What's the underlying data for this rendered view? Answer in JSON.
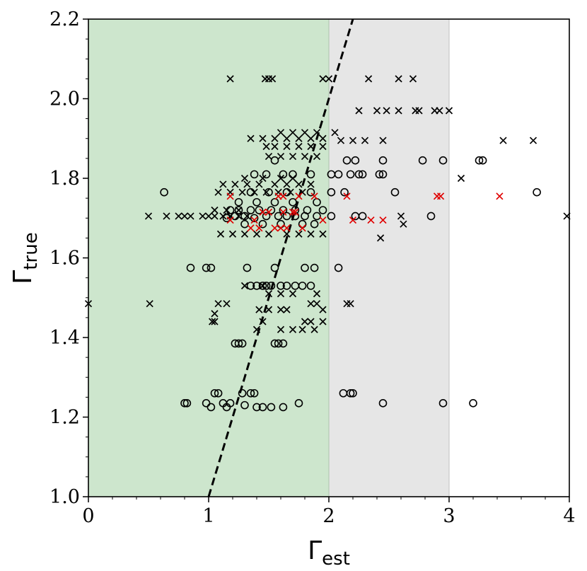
{
  "chart_data": {
    "type": "scatter",
    "xlabel": {
      "symbol": "Γ",
      "subscript": "est"
    },
    "ylabel": {
      "symbol": "Γ",
      "subscript": "true"
    },
    "xlim": [
      0,
      4
    ],
    "ylim": [
      1.0,
      2.2
    ],
    "x_ticks": [
      "0",
      "1",
      "2",
      "3",
      "4"
    ],
    "y_ticks": [
      "1.0",
      "1.2",
      "1.4",
      "1.6",
      "1.8",
      "2.0",
      "2.2"
    ],
    "grid": false,
    "regions": [
      {
        "x_from": 0,
        "x_to": 2,
        "color": "#cde6cd"
      },
      {
        "x_from": 2,
        "x_to": 3,
        "color": "#e6e6e6"
      }
    ],
    "reference_line": {
      "style": "dashed",
      "color": "#000000",
      "points": [
        [
          1.0,
          1.0
        ],
        [
          2.2,
          2.2
        ]
      ]
    },
    "series": [
      {
        "marker": "circle",
        "color": "#000000",
        "points": [
          [
            0.63,
            1.765
          ],
          [
            0.8,
            1.235
          ],
          [
            0.82,
            1.235
          ],
          [
            0.85,
            1.575
          ],
          [
            0.98,
            1.235
          ],
          [
            1.02,
            1.225
          ],
          [
            1.05,
            1.26
          ],
          [
            1.08,
            1.26
          ],
          [
            1.12,
            1.235
          ],
          [
            1.15,
            1.225
          ],
          [
            1.18,
            1.235
          ],
          [
            1.22,
            1.385
          ],
          [
            1.25,
            1.385
          ],
          [
            1.28,
            1.385
          ],
          [
            1.28,
            1.26
          ],
          [
            1.3,
            1.23
          ],
          [
            1.35,
            1.26
          ],
          [
            1.38,
            1.26
          ],
          [
            1.4,
            1.225
          ],
          [
            1.45,
            1.225
          ],
          [
            1.52,
            1.225
          ],
          [
            1.55,
            1.385
          ],
          [
            1.58,
            1.385
          ],
          [
            1.62,
            1.385
          ],
          [
            1.62,
            1.225
          ],
          [
            1.75,
            1.235
          ],
          [
            0.98,
            1.575
          ],
          [
            1.02,
            1.575
          ],
          [
            1.32,
            1.575
          ],
          [
            1.55,
            1.575
          ],
          [
            1.8,
            1.575
          ],
          [
            1.88,
            1.575
          ],
          [
            1.35,
            1.53
          ],
          [
            1.4,
            1.53
          ],
          [
            1.45,
            1.53
          ],
          [
            1.48,
            1.53
          ],
          [
            1.52,
            1.53
          ],
          [
            1.6,
            1.53
          ],
          [
            1.65,
            1.53
          ],
          [
            1.72,
            1.53
          ],
          [
            1.78,
            1.53
          ],
          [
            1.85,
            1.53
          ],
          [
            1.15,
            1.7
          ],
          [
            1.22,
            1.705
          ],
          [
            1.3,
            1.705
          ],
          [
            1.38,
            1.7
          ],
          [
            1.48,
            1.705
          ],
          [
            1.58,
            1.705
          ],
          [
            1.65,
            1.705
          ],
          [
            1.72,
            1.705
          ],
          [
            1.8,
            1.705
          ],
          [
            1.9,
            1.705
          ],
          [
            1.18,
            1.72
          ],
          [
            1.25,
            1.72
          ],
          [
            1.35,
            1.72
          ],
          [
            1.42,
            1.72
          ],
          [
            1.52,
            1.72
          ],
          [
            1.62,
            1.72
          ],
          [
            1.72,
            1.72
          ],
          [
            1.82,
            1.72
          ],
          [
            1.95,
            1.72
          ],
          [
            1.25,
            1.74
          ],
          [
            1.4,
            1.74
          ],
          [
            1.55,
            1.74
          ],
          [
            1.7,
            1.74
          ],
          [
            1.9,
            1.74
          ],
          [
            1.3,
            1.685
          ],
          [
            1.45,
            1.685
          ],
          [
            1.6,
            1.685
          ],
          [
            1.78,
            1.685
          ],
          [
            1.88,
            1.685
          ],
          [
            1.35,
            1.765
          ],
          [
            1.5,
            1.765
          ],
          [
            1.65,
            1.765
          ],
          [
            1.85,
            1.765
          ],
          [
            1.38,
            1.81
          ],
          [
            1.48,
            1.81
          ],
          [
            1.55,
            1.845
          ],
          [
            1.62,
            1.81
          ],
          [
            1.7,
            1.81
          ],
          [
            1.85,
            1.81
          ],
          [
            2.02,
            1.81
          ],
          [
            2.08,
            1.81
          ],
          [
            2.18,
            1.81
          ],
          [
            2.25,
            1.81
          ],
          [
            2.28,
            1.81
          ],
          [
            2.42,
            1.81
          ],
          [
            2.45,
            1.81
          ],
          [
            2.15,
            1.845
          ],
          [
            2.22,
            1.845
          ],
          [
            2.45,
            1.845
          ],
          [
            2.55,
            1.765
          ],
          [
            2.78,
            1.845
          ],
          [
            2.95,
            1.845
          ],
          [
            3.25,
            1.845
          ],
          [
            3.28,
            1.845
          ],
          [
            3.73,
            1.765
          ],
          [
            2.02,
            1.765
          ],
          [
            2.13,
            1.765
          ],
          [
            2.02,
            1.705
          ],
          [
            2.22,
            1.705
          ],
          [
            2.28,
            1.705
          ],
          [
            2.85,
            1.705
          ],
          [
            2.08,
            1.575
          ],
          [
            2.12,
            1.26
          ],
          [
            2.18,
            1.26
          ],
          [
            2.2,
            1.26
          ],
          [
            2.45,
            1.235
          ],
          [
            2.95,
            1.235
          ],
          [
            3.2,
            1.235
          ]
        ]
      },
      {
        "marker": "x",
        "color": "#000000",
        "points": [
          [
            0.0,
            1.485
          ],
          [
            0.51,
            1.485
          ],
          [
            0.5,
            1.705
          ],
          [
            0.65,
            1.705
          ],
          [
            0.75,
            1.705
          ],
          [
            0.8,
            1.705
          ],
          [
            0.85,
            1.705
          ],
          [
            0.95,
            1.705
          ],
          [
            1.0,
            1.705
          ],
          [
            1.05,
            1.705
          ],
          [
            1.12,
            1.705
          ],
          [
            1.18,
            1.705
          ],
          [
            1.25,
            1.705
          ],
          [
            1.32,
            1.705
          ],
          [
            1.05,
            1.72
          ],
          [
            1.15,
            1.72
          ],
          [
            1.25,
            1.72
          ],
          [
            1.1,
            1.66
          ],
          [
            1.2,
            1.66
          ],
          [
            1.3,
            1.66
          ],
          [
            1.4,
            1.66
          ],
          [
            1.5,
            1.66
          ],
          [
            1.65,
            1.66
          ],
          [
            1.75,
            1.66
          ],
          [
            1.85,
            1.66
          ],
          [
            1.95,
            1.66
          ],
          [
            1.08,
            1.765
          ],
          [
            1.18,
            1.765
          ],
          [
            1.28,
            1.765
          ],
          [
            1.38,
            1.765
          ],
          [
            1.48,
            1.765
          ],
          [
            1.58,
            1.765
          ],
          [
            1.68,
            1.765
          ],
          [
            1.78,
            1.765
          ],
          [
            1.12,
            1.785
          ],
          [
            1.22,
            1.785
          ],
          [
            1.32,
            1.785
          ],
          [
            1.42,
            1.785
          ],
          [
            1.55,
            1.785
          ],
          [
            1.65,
            1.785
          ],
          [
            1.75,
            1.785
          ],
          [
            1.85,
            1.785
          ],
          [
            1.3,
            1.8
          ],
          [
            1.45,
            1.8
          ],
          [
            1.6,
            1.8
          ],
          [
            1.7,
            1.8
          ],
          [
            1.5,
            1.855
          ],
          [
            1.6,
            1.855
          ],
          [
            1.7,
            1.855
          ],
          [
            1.8,
            1.855
          ],
          [
            1.9,
            1.855
          ],
          [
            1.48,
            1.88
          ],
          [
            1.55,
            1.88
          ],
          [
            1.65,
            1.88
          ],
          [
            1.75,
            1.88
          ],
          [
            1.85,
            1.88
          ],
          [
            1.95,
            1.88
          ],
          [
            1.35,
            1.9
          ],
          [
            1.45,
            1.9
          ],
          [
            1.55,
            1.9
          ],
          [
            1.65,
            1.9
          ],
          [
            1.75,
            1.9
          ],
          [
            1.85,
            1.9
          ],
          [
            1.95,
            1.9
          ],
          [
            1.6,
            1.915
          ],
          [
            1.7,
            1.915
          ],
          [
            1.8,
            1.915
          ],
          [
            1.9,
            1.915
          ],
          [
            2.05,
            1.915
          ],
          [
            2.1,
            1.895
          ],
          [
            2.2,
            1.895
          ],
          [
            2.3,
            1.895
          ],
          [
            2.45,
            1.895
          ],
          [
            2.25,
            1.97
          ],
          [
            2.4,
            1.97
          ],
          [
            2.48,
            1.97
          ],
          [
            2.58,
            1.97
          ],
          [
            2.72,
            1.97
          ],
          [
            2.75,
            1.97
          ],
          [
            2.88,
            1.97
          ],
          [
            2.92,
            1.97
          ],
          [
            3.0,
            1.97
          ],
          [
            3.1,
            1.8
          ],
          [
            3.45,
            1.895
          ],
          [
            3.7,
            1.895
          ],
          [
            3.98,
            1.705
          ],
          [
            2.6,
            1.705
          ],
          [
            2.62,
            1.685
          ],
          [
            2.43,
            1.65
          ],
          [
            1.18,
            2.05
          ],
          [
            1.47,
            2.05
          ],
          [
            1.5,
            2.05
          ],
          [
            1.53,
            2.05
          ],
          [
            1.95,
            2.05
          ],
          [
            2.0,
            2.05
          ],
          [
            2.33,
            2.05
          ],
          [
            2.58,
            2.05
          ],
          [
            2.7,
            2.05
          ],
          [
            1.03,
            1.44
          ],
          [
            1.05,
            1.44
          ],
          [
            1.08,
            1.485
          ],
          [
            1.15,
            1.485
          ],
          [
            1.05,
            1.46
          ],
          [
            1.42,
            1.47
          ],
          [
            1.5,
            1.47
          ],
          [
            1.6,
            1.47
          ],
          [
            1.65,
            1.47
          ],
          [
            1.45,
            1.44
          ],
          [
            1.6,
            1.42
          ],
          [
            1.7,
            1.42
          ],
          [
            1.78,
            1.42
          ],
          [
            1.85,
            1.44
          ],
          [
            1.88,
            1.42
          ],
          [
            1.95,
            1.44
          ],
          [
            1.95,
            1.47
          ],
          [
            1.85,
            1.485
          ],
          [
            1.9,
            1.485
          ],
          [
            1.5,
            1.51
          ],
          [
            1.6,
            1.51
          ],
          [
            1.7,
            1.51
          ],
          [
            1.9,
            1.51
          ],
          [
            1.3,
            1.53
          ],
          [
            1.45,
            1.53
          ],
          [
            2.15,
            1.485
          ],
          [
            2.18,
            1.485
          ],
          [
            1.4,
            1.42
          ],
          [
            1.8,
            1.44
          ]
        ]
      },
      {
        "marker": "x",
        "color": "#e00000",
        "points": [
          [
            1.18,
            1.755
          ],
          [
            1.18,
            1.695
          ],
          [
            1.38,
            1.695
          ],
          [
            1.42,
            1.675
          ],
          [
            1.5,
            1.715
          ],
          [
            1.55,
            1.675
          ],
          [
            1.58,
            1.755
          ],
          [
            1.6,
            1.675
          ],
          [
            1.62,
            1.755
          ],
          [
            1.65,
            1.675
          ],
          [
            1.7,
            1.715
          ],
          [
            1.72,
            1.715
          ],
          [
            1.75,
            1.755
          ],
          [
            1.78,
            1.675
          ],
          [
            1.88,
            1.755
          ],
          [
            1.95,
            1.695
          ],
          [
            2.15,
            1.755
          ],
          [
            2.2,
            1.695
          ],
          [
            2.35,
            1.695
          ],
          [
            2.45,
            1.695
          ],
          [
            2.9,
            1.755
          ],
          [
            2.93,
            1.755
          ],
          [
            3.42,
            1.755
          ],
          [
            1.35,
            1.675
          ],
          [
            1.45,
            1.715
          ],
          [
            1.62,
            1.715
          ]
        ]
      }
    ]
  }
}
